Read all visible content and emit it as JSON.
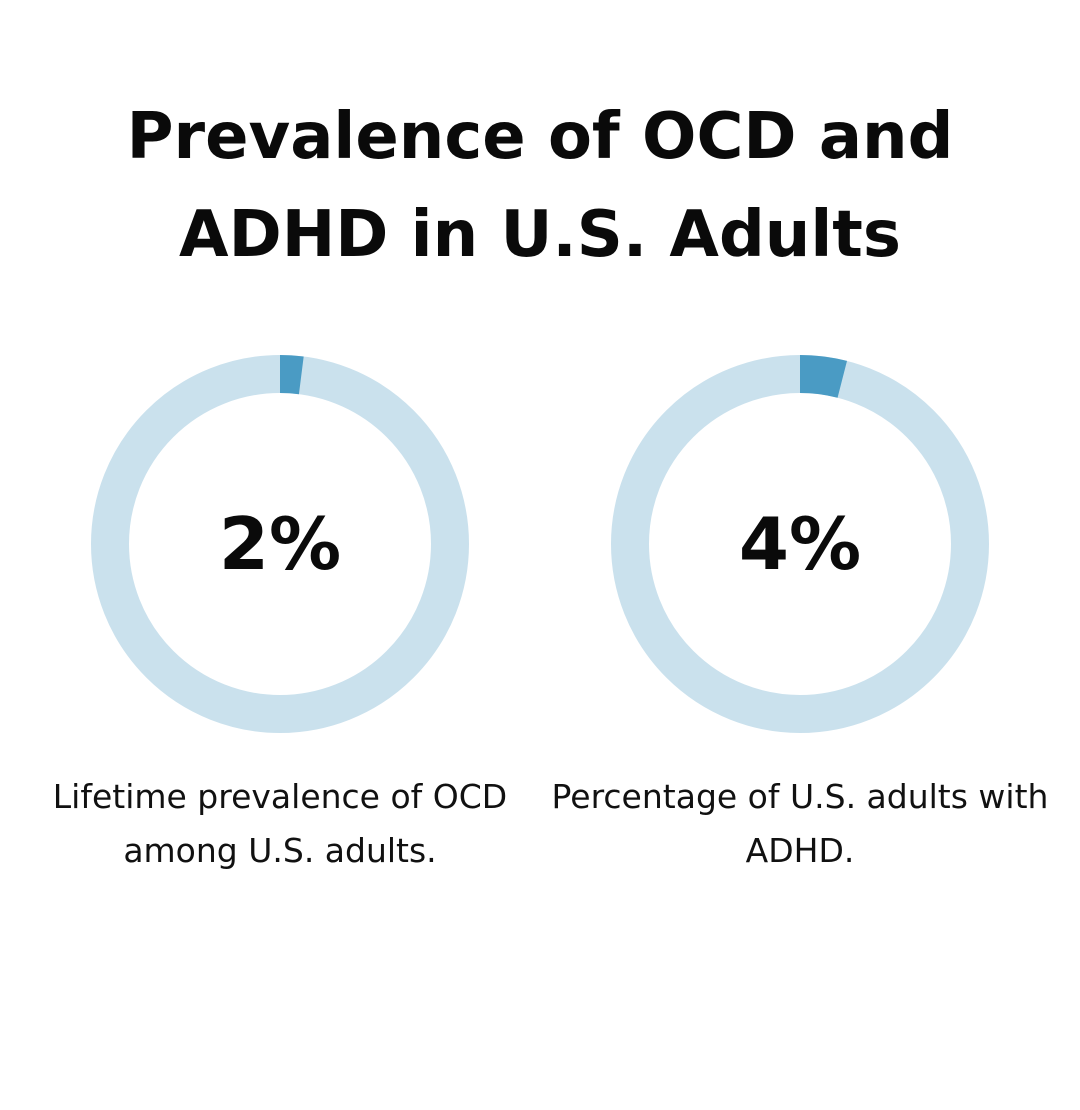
{
  "title_lines": [
    "Prevalence of OCD and",
    "ADHD in U.S. Adults"
  ],
  "colors": {
    "track": "#cae1ed",
    "fill": "#4a9bc4"
  },
  "chart_data": [
    {
      "type": "pie",
      "value_label": "2%",
      "value": 2,
      "max": 100,
      "caption": "Lifetime prevalence of OCD among U.S. adults."
    },
    {
      "type": "pie",
      "value_label": "4%",
      "value": 4,
      "max": 100,
      "caption": "Percentage of U.S. adults with ADHD."
    }
  ]
}
